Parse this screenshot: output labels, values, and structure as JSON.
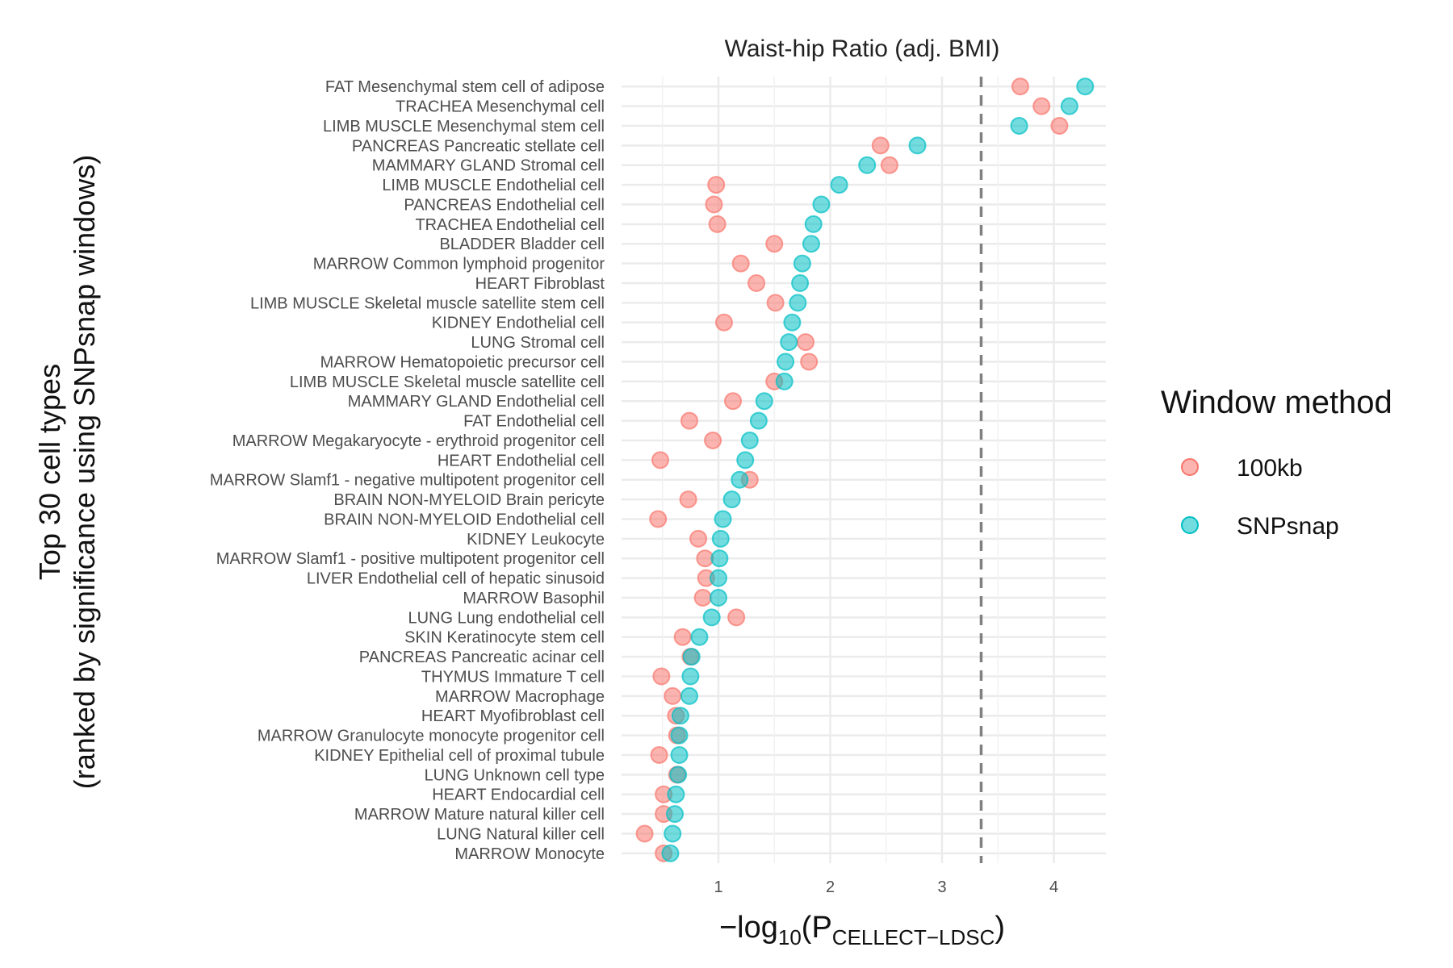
{
  "chart_data": {
    "type": "scatter",
    "title": "Waist-hip Ratio (adj. BMI)",
    "ylabel_lines": [
      "Top 30 cell types",
      "(ranked by significance using SNPsnap windows)"
    ],
    "xlabel": {
      "prefix": "−log",
      "base": "10",
      "open": "(P",
      "subscript": "CELLECT−LDSC",
      "close": ")"
    },
    "xlim": [
      0.25,
      4.45
    ],
    "xticks": [
      1,
      2,
      3,
      4
    ],
    "grid": true,
    "threshold_line": 3.35,
    "legend": {
      "title": "Window method",
      "placement": "right"
    },
    "series": [
      {
        "name": "100kb",
        "color": "#F8766D"
      },
      {
        "name": "SNPsnap",
        "color": "#00BFC4"
      }
    ],
    "categories": [
      "FAT Mesenchymal stem cell of adipose",
      "TRACHEA Mesenchymal cell",
      "LIMB MUSCLE Mesenchymal stem cell",
      "PANCREAS Pancreatic stellate cell",
      "MAMMARY GLAND Stromal cell",
      "LIMB MUSCLE Endothelial cell",
      "PANCREAS Endothelial cell",
      "TRACHEA Endothelial cell",
      "BLADDER Bladder cell",
      "MARROW Common lymphoid progenitor",
      "HEART Fibroblast",
      "LIMB MUSCLE Skeletal muscle satellite stem cell",
      "KIDNEY Endothelial cell",
      "LUNG Stromal cell",
      "MARROW Hematopoietic precursor cell",
      "LIMB MUSCLE Skeletal muscle satellite cell",
      "MAMMARY GLAND Endothelial cell",
      "FAT Endothelial cell",
      "MARROW Megakaryocyte - erythroid progenitor cell",
      "HEART Endothelial cell",
      "MARROW Slamf1 - negative multipotent progenitor cell",
      "BRAIN NON-MYELOID Brain pericyte",
      "BRAIN NON-MYELOID Endothelial cell",
      "KIDNEY Leukocyte",
      "MARROW Slamf1 - positive multipotent progenitor cell",
      "LIVER Endothelial cell of hepatic sinusoid",
      "MARROW Basophil",
      "LUNG Lung endothelial cell",
      "SKIN Keratinocyte stem cell",
      "PANCREAS Pancreatic acinar cell",
      "THYMUS Immature T cell",
      "MARROW Macrophage",
      "HEART Myofibroblast cell",
      "MARROW Granulocyte monocyte progenitor cell",
      "KIDNEY Epithelial cell of proximal tubule",
      "LUNG Unknown cell type",
      "HEART Endocardial cell",
      "MARROW Mature natural killer cell",
      "LUNG Natural killer cell",
      "MARROW Monocyte"
    ],
    "values_100kb": [
      3.7,
      3.89,
      4.05,
      2.45,
      2.53,
      0.98,
      0.96,
      0.99,
      1.5,
      1.2,
      1.34,
      1.51,
      1.05,
      1.78,
      1.81,
      1.5,
      1.13,
      0.74,
      0.95,
      0.48,
      1.28,
      0.73,
      0.46,
      0.82,
      0.88,
      0.89,
      0.86,
      1.16,
      0.68,
      0.75,
      0.49,
      0.59,
      0.62,
      0.63,
      0.47,
      0.63,
      0.51,
      0.51,
      0.34,
      0.51
    ],
    "values_SNPsnap": [
      4.28,
      4.14,
      3.69,
      2.78,
      2.33,
      2.08,
      1.92,
      1.85,
      1.83,
      1.75,
      1.73,
      1.71,
      1.66,
      1.63,
      1.6,
      1.59,
      1.41,
      1.36,
      1.28,
      1.24,
      1.19,
      1.12,
      1.04,
      1.02,
      1.01,
      1.0,
      1.0,
      0.94,
      0.83,
      0.76,
      0.75,
      0.74,
      0.66,
      0.65,
      0.65,
      0.64,
      0.62,
      0.61,
      0.59,
      0.57
    ]
  }
}
